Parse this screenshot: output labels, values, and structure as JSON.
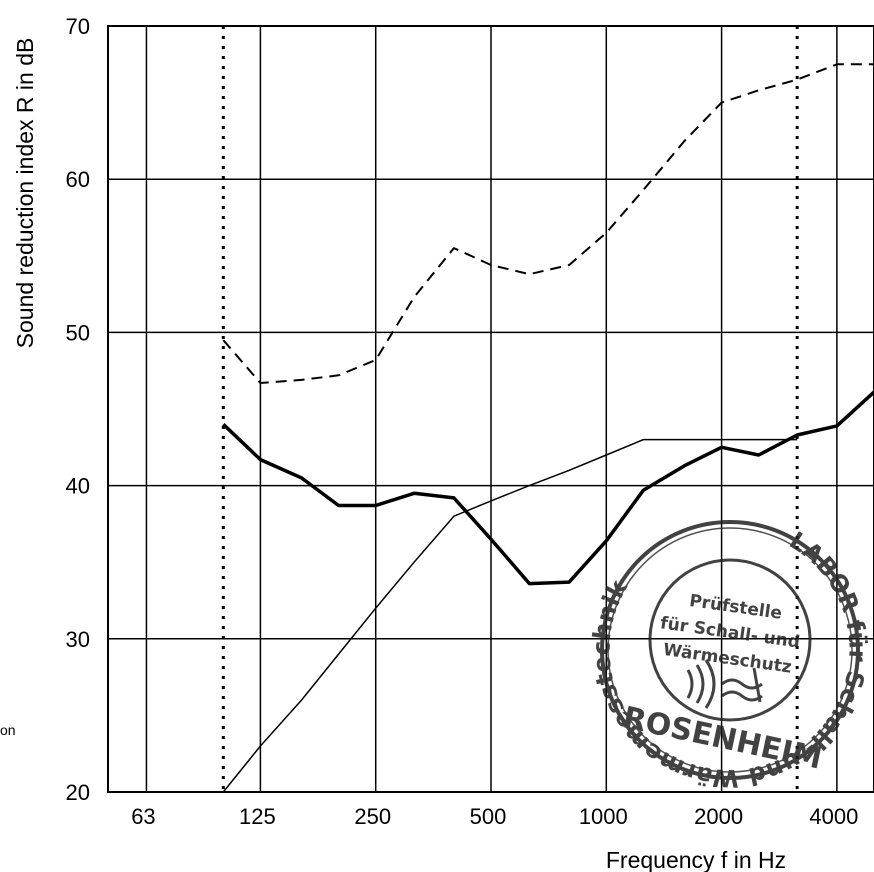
{
  "chart_data": {
    "type": "line",
    "xlabel": "Frequency f in Hz",
    "ylabel": "Sound reduction index R in dB",
    "x_scale": "log",
    "xlim": [
      50,
      5000
    ],
    "ylim": [
      20,
      70
    ],
    "x_ticks": [
      63,
      125,
      250,
      500,
      1000,
      2000,
      4000
    ],
    "x_tick_labels": [
      "63",
      "125",
      "250",
      "500",
      "1000",
      "2000",
      "4000"
    ],
    "y_ticks": [
      20,
      30,
      40,
      50,
      60,
      70
    ],
    "y_tick_labels": [
      "20",
      "30",
      "40",
      "50",
      "60",
      "70"
    ],
    "grid": true,
    "vertical_markers": [
      100,
      3150
    ],
    "x": [
      100,
      125,
      160,
      200,
      250,
      315,
      400,
      500,
      630,
      800,
      1000,
      1250,
      1600,
      2000,
      2500,
      3150,
      4000,
      5000
    ],
    "series": [
      {
        "style": "thick-solid",
        "values": [
          44.0,
          41.7,
          40.5,
          38.7,
          38.7,
          39.5,
          39.2,
          36.5,
          33.6,
          33.7,
          36.4,
          39.7,
          41.3,
          42.5,
          42.0,
          43.3,
          43.9,
          46.1
        ]
      },
      {
        "style": "dashed",
        "values": [
          49.5,
          46.7,
          46.9,
          47.2,
          48.2,
          52.3,
          55.5,
          54.4,
          53.8,
          54.4,
          56.5,
          59.3,
          62.5,
          65.0,
          65.8,
          66.5,
          67.5,
          67.5
        ]
      },
      {
        "style": "thin-solid",
        "role": "reference curve",
        "values": [
          20,
          23,
          26,
          29,
          32,
          35,
          38,
          39,
          40,
          41,
          42,
          43,
          43,
          43,
          43,
          43,
          null,
          null
        ]
      }
    ],
    "side_text": "on"
  },
  "stamp": {
    "ring_text": "LABOR für Schall- und Wärmemesstechnik",
    "center_lines": [
      "Prüfstelle",
      "für Schall- und",
      "Wärmeschutz"
    ],
    "city": "ROSENHEIM"
  }
}
